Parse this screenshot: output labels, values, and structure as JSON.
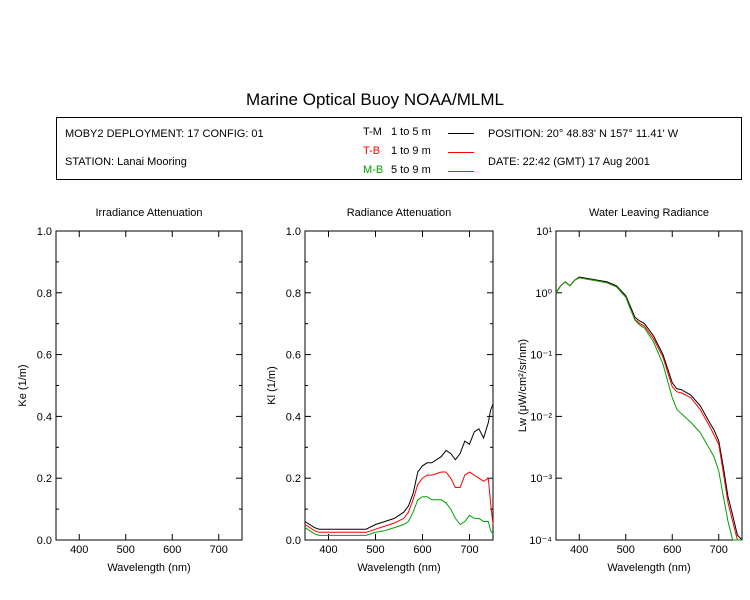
{
  "title": "Marine Optical Buoy NOAA/MLML",
  "info": {
    "deployment": "MOBY2 DEPLOYMENT: 17 CONFIG: 01",
    "station": "STATION: Lanai Mooring",
    "position": "POSITION: 20° 48.83' N   157° 11.41' W",
    "date": "DATE: 22:42 (GMT) 17 Aug 2001",
    "legend": [
      {
        "name": "T-M",
        "range": "1 to 5  m",
        "color": "#000000"
      },
      {
        "name": "T-B",
        "range": "1 to 9  m",
        "color": "#ff0000"
      },
      {
        "name": "M-B",
        "range": "5 to 9  m",
        "color": "#00a000"
      }
    ]
  },
  "chart_data": [
    {
      "type": "line",
      "title": "Irradiance Attenuation",
      "xlabel": "Wavelength (nm)",
      "ylabel": "Ke  (1/m)",
      "xlim": [
        350,
        750
      ],
      "ylim": [
        0,
        1
      ],
      "xticks": [
        400,
        500,
        600,
        700
      ],
      "yticks": [
        "0.0",
        "0.2",
        "0.4",
        "0.6",
        "0.8",
        "1.0"
      ],
      "series": []
    },
    {
      "type": "line",
      "title": "Radiance Attenuation",
      "xlabel": "Wavelength (nm)",
      "ylabel": "Kl  (1/m)",
      "xlim": [
        350,
        750
      ],
      "ylim": [
        0,
        1
      ],
      "xticks": [
        400,
        500,
        600,
        700
      ],
      "yticks": [
        "0.0",
        "0.2",
        "0.4",
        "0.6",
        "0.8",
        "1.0"
      ],
      "series": [
        {
          "name": "T-M",
          "color": "#000000",
          "x": [
            350,
            360,
            370,
            380,
            400,
            450,
            480,
            500,
            520,
            540,
            560,
            570,
            580,
            590,
            600,
            610,
            620,
            640,
            650,
            660,
            670,
            680,
            690,
            700,
            710,
            720,
            730,
            740,
            745,
            750
          ],
          "y": [
            0.06,
            0.05,
            0.04,
            0.035,
            0.035,
            0.035,
            0.035,
            0.05,
            0.06,
            0.07,
            0.09,
            0.11,
            0.15,
            0.22,
            0.24,
            0.25,
            0.25,
            0.27,
            0.29,
            0.28,
            0.26,
            0.28,
            0.32,
            0.31,
            0.35,
            0.36,
            0.33,
            0.38,
            0.42,
            0.44
          ]
        },
        {
          "name": "T-B",
          "color": "#ff0000",
          "x": [
            350,
            360,
            370,
            380,
            400,
            450,
            480,
            500,
            520,
            540,
            560,
            570,
            580,
            590,
            600,
            610,
            620,
            640,
            650,
            660,
            670,
            680,
            690,
            700,
            710,
            720,
            730,
            740,
            745,
            750
          ],
          "y": [
            0.05,
            0.04,
            0.03,
            0.025,
            0.025,
            0.025,
            0.025,
            0.035,
            0.045,
            0.055,
            0.07,
            0.09,
            0.13,
            0.18,
            0.2,
            0.21,
            0.21,
            0.22,
            0.22,
            0.2,
            0.17,
            0.17,
            0.21,
            0.22,
            0.21,
            0.2,
            0.19,
            0.2,
            0.12,
            0.05
          ]
        },
        {
          "name": "M-B",
          "color": "#00a000",
          "x": [
            350,
            360,
            370,
            380,
            400,
            450,
            480,
            500,
            520,
            540,
            560,
            570,
            580,
            590,
            600,
            610,
            620,
            640,
            650,
            660,
            670,
            680,
            690,
            700,
            710,
            720,
            730,
            740,
            745,
            750
          ],
          "y": [
            0.04,
            0.03,
            0.02,
            0.015,
            0.015,
            0.015,
            0.015,
            0.025,
            0.03,
            0.04,
            0.05,
            0.06,
            0.09,
            0.13,
            0.14,
            0.14,
            0.13,
            0.13,
            0.12,
            0.1,
            0.07,
            0.05,
            0.06,
            0.08,
            0.07,
            0.07,
            0.06,
            0.06,
            0.03,
            0.02
          ]
        }
      ]
    },
    {
      "type": "line",
      "title": "Water Leaving Radiance",
      "xlabel": "Wavelength (nm)",
      "ylabel": "Lw  (μW/cm²/sr/nm)",
      "xlim": [
        350,
        750
      ],
      "yscale": "log",
      "ylim": [
        0.0001,
        10
      ],
      "xticks": [
        400,
        500,
        600,
        700
      ],
      "yticks": [
        "10⁻⁴",
        "10⁻³",
        "10⁻²",
        "10⁻¹",
        "10⁰",
        "10¹"
      ],
      "series": [
        {
          "name": "T-M",
          "color": "#000000",
          "x": [
            350,
            360,
            370,
            380,
            390,
            400,
            420,
            440,
            460,
            480,
            500,
            510,
            520,
            530,
            540,
            560,
            580,
            600,
            610,
            620,
            640,
            660,
            680,
            690,
            700,
            710,
            720,
            730,
            740,
            750
          ],
          "y": [
            1.0,
            1.3,
            1.5,
            1.3,
            1.6,
            1.8,
            1.7,
            1.6,
            1.5,
            1.3,
            0.9,
            0.6,
            0.4,
            0.35,
            0.32,
            0.2,
            0.1,
            0.035,
            0.028,
            0.027,
            0.022,
            0.015,
            0.008,
            0.006,
            0.004,
            0.0015,
            0.0005,
            0.00025,
            0.00012,
            0.0001
          ]
        },
        {
          "name": "T-B",
          "color": "#ff0000",
          "x": [
            350,
            360,
            370,
            380,
            390,
            400,
            420,
            440,
            460,
            480,
            500,
            510,
            520,
            530,
            540,
            560,
            580,
            600,
            610,
            620,
            640,
            660,
            680,
            690,
            700,
            710,
            720,
            730,
            740,
            750
          ],
          "y": [
            1.0,
            1.3,
            1.5,
            1.3,
            1.6,
            1.75,
            1.65,
            1.55,
            1.45,
            1.25,
            0.85,
            0.55,
            0.37,
            0.32,
            0.29,
            0.18,
            0.09,
            0.03,
            0.025,
            0.024,
            0.02,
            0.013,
            0.007,
            0.005,
            0.0035,
            0.0012,
            0.0004,
            0.0002,
            0.0001,
            0.0001
          ]
        },
        {
          "name": "M-B",
          "color": "#00a000",
          "x": [
            350,
            360,
            370,
            380,
            390,
            400,
            420,
            440,
            460,
            480,
            500,
            510,
            520,
            530,
            540,
            560,
            580,
            600,
            610,
            620,
            640,
            660,
            680,
            690,
            700,
            710,
            720,
            730,
            740,
            750
          ],
          "y": [
            1.0,
            1.3,
            1.5,
            1.3,
            1.6,
            1.75,
            1.65,
            1.55,
            1.45,
            1.25,
            0.85,
            0.55,
            0.36,
            0.3,
            0.27,
            0.16,
            0.07,
            0.02,
            0.013,
            0.011,
            0.008,
            0.0055,
            0.003,
            0.0022,
            0.0013,
            0.0005,
            0.0002,
            0.0001,
            0.0001,
            0.0001
          ]
        }
      ]
    }
  ]
}
